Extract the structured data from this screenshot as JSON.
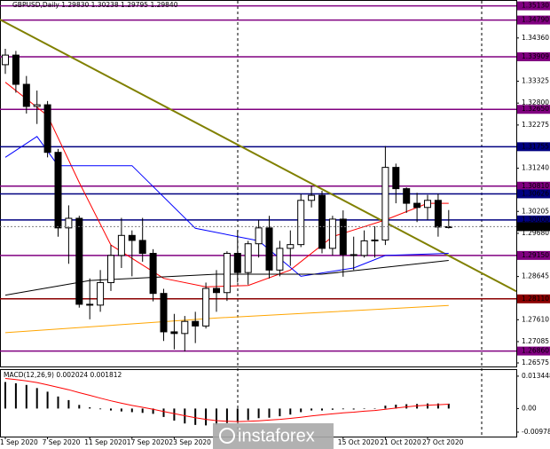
{
  "chart_data": [
    {
      "type": "candlestick",
      "title": "GBPUSD,Daily  1.29830 1.30238 1.29795 1.29840",
      "categories": [
        "1 Sep 2020",
        null,
        null,
        null,
        "7 Sep 2020",
        null,
        null,
        null,
        "11 Sep 2020",
        null,
        null,
        null,
        "17 Sep 2020",
        null,
        null,
        null,
        "23 Sep 2020",
        null,
        null,
        null,
        null,
        null,
        null,
        null,
        null,
        null,
        null,
        null,
        null,
        null,
        null,
        null,
        "15 Oct 2020",
        null,
        null,
        null,
        "21 Oct 2020",
        null,
        null,
        null,
        "27 Oct 2020",
        null,
        null
      ],
      "open": [
        1.3372,
        1.3395,
        1.3325,
        1.3272,
        1.3276,
        1.3162,
        1.2981,
        1.3004,
        1.2798,
        1.2796,
        1.285,
        1.2915,
        1.2963,
        1.2951,
        1.292,
        1.2824,
        1.2732,
        1.2728,
        1.2757,
        1.2746,
        1.2836,
        1.2826,
        1.292,
        1.2874,
        1.2943,
        1.2981,
        1.288,
        1.2932,
        1.2941,
        1.3047,
        1.3059,
        1.2932,
        1.3002,
        1.2917,
        1.2915,
        1.295,
        1.2952,
        1.3126,
        1.3075,
        1.304,
        1.303,
        1.3047,
        1.2983
      ],
      "high": [
        1.341,
        1.3405,
        1.3345,
        1.331,
        1.3285,
        1.317,
        1.3035,
        1.301,
        1.286,
        1.288,
        1.294,
        1.3005,
        1.2975,
        1.3005,
        1.293,
        1.2835,
        1.2775,
        1.277,
        1.278,
        1.285,
        1.288,
        1.2925,
        1.2975,
        1.295,
        1.3,
        1.301,
        1.295,
        1.2975,
        1.3062,
        1.3082,
        1.307,
        1.301,
        1.3023,
        1.296,
        1.2975,
        1.2985,
        1.3177,
        1.3135,
        1.3078,
        1.3065,
        1.306,
        1.3063,
        1.30238
      ],
      "low": [
        1.335,
        1.3305,
        1.3255,
        1.323,
        1.315,
        1.296,
        1.2895,
        1.279,
        1.2762,
        1.278,
        1.283,
        1.2885,
        1.2865,
        1.29,
        1.2805,
        1.271,
        1.269,
        1.2685,
        1.2705,
        1.274,
        1.278,
        1.2806,
        1.285,
        1.2845,
        1.291,
        1.286,
        1.2865,
        1.289,
        1.2935,
        1.303,
        1.292,
        1.2915,
        1.2864,
        1.288,
        1.291,
        1.291,
        1.294,
        1.304,
        1.3017,
        1.2995,
        1.3,
        1.296,
        1.29795
      ],
      "close": [
        1.3395,
        1.3325,
        1.3272,
        1.3276,
        1.3162,
        1.2981,
        1.3004,
        1.2798,
        1.2796,
        1.285,
        1.2915,
        1.2963,
        1.2951,
        1.292,
        1.2824,
        1.2732,
        1.2728,
        1.2757,
        1.2746,
        1.2836,
        1.2826,
        1.292,
        1.2874,
        1.2943,
        1.2981,
        1.288,
        1.2932,
        1.2941,
        1.3047,
        1.3059,
        1.2932,
        1.3002,
        1.2917,
        1.2915,
        1.295,
        1.2952,
        1.3126,
        1.3075,
        1.304,
        1.303,
        1.3047,
        1.2983,
        1.2984
      ],
      "up_color": "#ffffff",
      "down_color": "#000000",
      "last_price_label": "1.29840",
      "ylim": [
        1.2649,
        1.3527
      ],
      "yticks": [
        {
          "value": 1.3436,
          "label": "1.34360"
        },
        {
          "value": 1.33325,
          "label": "1.33325"
        },
        {
          "value": 1.328,
          "label": "1.32800"
        },
        {
          "value": 1.32275,
          "label": "1.32275"
        },
        {
          "value": 1.3124,
          "label": "1.31240"
        },
        {
          "value": 1.30205,
          "label": "1.30205"
        },
        {
          "value": 1.2968,
          "label": "1.29680"
        },
        {
          "value": 1.28645,
          "label": "1.28645"
        },
        {
          "value": 1.2761,
          "label": "1.27610"
        },
        {
          "value": 1.27085,
          "label": "1.27085"
        },
        {
          "value": 1.26575,
          "label": "1.26575"
        }
      ],
      "levels": [
        {
          "value": 1.3513,
          "label": "1.35130",
          "color": "#800080"
        },
        {
          "value": 1.3479,
          "label": "1.34790",
          "color": "#800080"
        },
        {
          "value": 1.33909,
          "label": "1.33909",
          "color": "#800080"
        },
        {
          "value": 1.3265,
          "label": "1.32650",
          "color": "#800080"
        },
        {
          "value": 1.31755,
          "label": "1.31755",
          "color": "#000080"
        },
        {
          "value": 1.3081,
          "label": "1.30810",
          "color": "#800080"
        },
        {
          "value": 1.30626,
          "label": "1.30626",
          "color": "#000080"
        },
        {
          "value": 1.3,
          "label": "1.30000",
          "color": "#000080"
        },
        {
          "value": 1.2915,
          "label": "1.29150",
          "color": "#800080"
        },
        {
          "value": 1.2811,
          "label": "1.28110",
          "color": "#8b0000"
        },
        {
          "value": 1.2686,
          "label": "1.26860",
          "color": "#800080"
        }
      ],
      "lines": [
        {
          "color": "#808000",
          "width": 2,
          "x": [
            -0.5,
            48.4
          ],
          "values": [
            1.348,
            1.2829
          ]
        },
        {
          "color": "#ff0000",
          "width": 1,
          "x": [
            0,
            4,
            7,
            10,
            15,
            19,
            23,
            27,
            31,
            36,
            40,
            42
          ],
          "values": [
            1.333,
            1.325,
            1.309,
            1.294,
            1.286,
            1.284,
            1.2843,
            1.288,
            1.296,
            1.3,
            1.304,
            1.304
          ]
        },
        {
          "color": "#0000ff",
          "width": 1,
          "x": [
            0,
            3,
            5,
            9,
            12,
            18,
            24,
            28,
            33,
            36,
            42
          ],
          "values": [
            1.315,
            1.32,
            1.313,
            1.313,
            1.313,
            1.298,
            1.295,
            1.2865,
            1.2885,
            1.2915,
            1.292
          ]
        },
        {
          "color": "#000000",
          "width": 1,
          "x": [
            0,
            8,
            20,
            30,
            42
          ],
          "values": [
            1.282,
            1.2855,
            1.287,
            1.287,
            1.2903
          ]
        },
        {
          "color": "#ffa500",
          "width": 1,
          "x": [
            0,
            20,
            42
          ],
          "values": [
            1.273,
            1.2765,
            1.2795
          ]
        }
      ],
      "watermark": "instaforex"
    },
    {
      "type": "macd",
      "title": "MACD(12,26,9) 0.002024 0.001812",
      "ylim": [
        -0.01164,
        0.01636
      ],
      "yticks": [
        0.013448,
        {
          "value": 0,
          "label": "0.00"
        },
        -0.009786
      ],
      "histogram": [
        0.011,
        0.0105,
        0.0098,
        0.0085,
        0.007,
        0.005,
        0.0035,
        0.0015,
        0.0005,
        -0.0003,
        -0.0008,
        -0.0012,
        -0.0015,
        -0.0018,
        -0.0022,
        -0.0035,
        -0.005,
        -0.0062,
        -0.0068,
        -0.007,
        -0.0068,
        -0.006,
        -0.0055,
        -0.0048,
        -0.004,
        -0.0038,
        -0.0032,
        -0.0025,
        -0.0015,
        -0.0008,
        -0.0008,
        -0.0005,
        -0.0003,
        -0.0004,
        -0.0002,
        0.0001,
        0.0012,
        0.0016,
        0.0018,
        0.0019,
        0.0021,
        0.0021,
        0.002024
      ],
      "signal": [
        0.0125,
        0.012,
        0.0115,
        0.0108,
        0.0098,
        0.0088,
        0.0078,
        0.0066,
        0.0055,
        0.0043,
        0.0032,
        0.0022,
        0.0013,
        0.0005,
        -0.0003,
        -0.0012,
        -0.0021,
        -0.003,
        -0.0038,
        -0.0045,
        -0.005,
        -0.0053,
        -0.0054,
        -0.0053,
        -0.0051,
        -0.0048,
        -0.0045,
        -0.0041,
        -0.0036,
        -0.0031,
        -0.0026,
        -0.0022,
        -0.0018,
        -0.0015,
        -0.0011,
        -0.0008,
        -0.0003,
        0.0002,
        0.0007,
        0.0011,
        0.0014,
        0.0016,
        0.001812
      ],
      "histogram_color": "#000000",
      "signal_color": "#ff0000"
    }
  ]
}
